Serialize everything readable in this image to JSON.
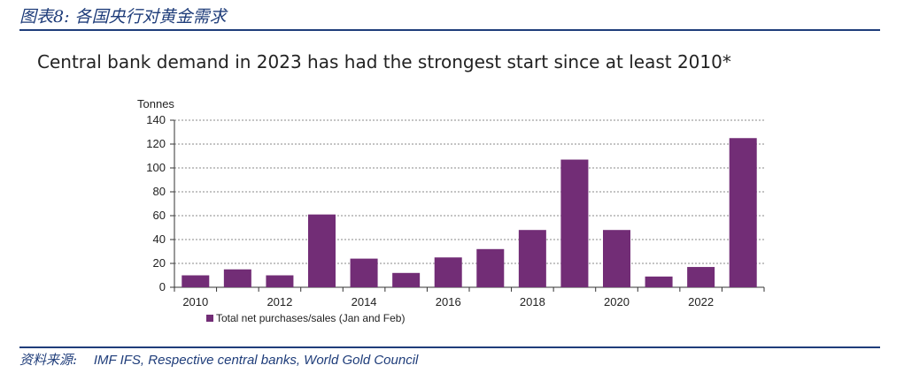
{
  "figure_label": "图表8:  各国央行对黄金需求",
  "source": {
    "label": "资料来源:",
    "text": "IMF IFS, Respective central banks, World Gold Council"
  },
  "chart_data": {
    "type": "bar",
    "title": "Central bank demand in 2023 has had the strongest start since at least 2010*",
    "ylabel": "Tonnes",
    "xlabel": "",
    "ylim": [
      0,
      140
    ],
    "yticks": [
      0,
      20,
      40,
      60,
      80,
      100,
      120,
      140
    ],
    "grid": true,
    "categories": [
      "2010",
      "2011",
      "2012",
      "2013",
      "2014",
      "2015",
      "2016",
      "2017",
      "2018",
      "2019",
      "2020",
      "2021",
      "2022",
      "2023"
    ],
    "x_tick_labels": [
      "2010",
      "2012",
      "2014",
      "2016",
      "2018",
      "2020",
      "2022"
    ],
    "series": [
      {
        "name": "Total net purchases/sales (Jan and Feb)",
        "color": "#722d76",
        "values": [
          10,
          15,
          10,
          61,
          24,
          12,
          25,
          32,
          48,
          107,
          48,
          9,
          17,
          125
        ]
      }
    ],
    "legend_position": "bottom-left"
  }
}
